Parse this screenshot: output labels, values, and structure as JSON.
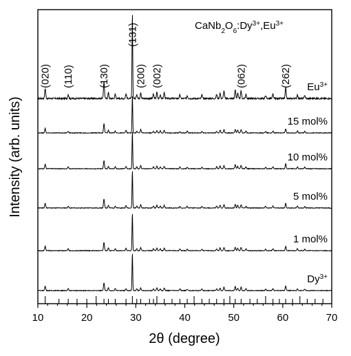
{
  "chart_data": {
    "type": "line",
    "title_parts": {
      "base": "CaNb",
      "sub1": "2",
      "mid": "O",
      "sub2": "6",
      "rest": ":Dy",
      "sup1": "3+",
      "sep": ",Eu",
      "sup2": "3+"
    },
    "xlabel_parts": {
      "symbol": "2θ",
      "unit": " (degree)"
    },
    "ylabel": "Intensity (arb. units)",
    "xlim": [
      10,
      70
    ],
    "x_ticks": [
      "10",
      "20",
      "30",
      "40",
      "50",
      "60",
      "70"
    ],
    "grid": false,
    "series": [
      {
        "label_base": "Eu",
        "label_sup": "3+"
      },
      {
        "label_base": "15 mol%"
      },
      {
        "label_base": "10 mol%"
      },
      {
        "label_base": "5 mol%"
      },
      {
        "label_base": "1 mol%"
      },
      {
        "label_base": "Dy",
        "label_sup": "3+"
      }
    ],
    "peaks": [
      {
        "x": 11.5,
        "rel": 0.12
      },
      {
        "x": 16.2,
        "rel": 0.05
      },
      {
        "x": 23.5,
        "rel": 0.22
      },
      {
        "x": 24.4,
        "rel": 0.07
      },
      {
        "x": 25.8,
        "rel": 0.05
      },
      {
        "x": 28.0,
        "rel": 0.06
      },
      {
        "x": 29.3,
        "rel": 1.0
      },
      {
        "x": 30.2,
        "rel": 0.05
      },
      {
        "x": 31.0,
        "rel": 0.08
      },
      {
        "x": 33.6,
        "rel": 0.05
      },
      {
        "x": 34.3,
        "rel": 0.07
      },
      {
        "x": 35.0,
        "rel": 0.05
      },
      {
        "x": 35.8,
        "rel": 0.07
      },
      {
        "x": 39.0,
        "rel": 0.04
      },
      {
        "x": 40.5,
        "rel": 0.04
      },
      {
        "x": 43.5,
        "rel": 0.04
      },
      {
        "x": 46.5,
        "rel": 0.05
      },
      {
        "x": 47.2,
        "rel": 0.07
      },
      {
        "x": 48.0,
        "rel": 0.09
      },
      {
        "x": 50.3,
        "rel": 0.1
      },
      {
        "x": 50.8,
        "rel": 0.07
      },
      {
        "x": 51.5,
        "rel": 0.09
      },
      {
        "x": 52.5,
        "rel": 0.05
      },
      {
        "x": 56.5,
        "rel": 0.04
      },
      {
        "x": 58.0,
        "rel": 0.05
      },
      {
        "x": 60.6,
        "rel": 0.12
      },
      {
        "x": 63.0,
        "rel": 0.05
      },
      {
        "x": 64.5,
        "rel": 0.04
      }
    ],
    "reflections": [
      {
        "hkl": "(020)",
        "x": 11.5
      },
      {
        "hkl": "(110)",
        "x": 16.2
      },
      {
        "hkl": "(130)",
        "x": 23.5
      },
      {
        "hkl": "(131)",
        "x": 29.3
      },
      {
        "hkl": "(200)",
        "x": 31.0
      },
      {
        "hkl": "(002)",
        "x": 34.3
      },
      {
        "hkl": "(062)",
        "x": 51.5
      },
      {
        "hkl": "(262)",
        "x": 60.6
      }
    ],
    "reference_lines": [
      11.5,
      14.3,
      16.2,
      18.0,
      20.0,
      21.9,
      23.5,
      24.4,
      25.8,
      28.0,
      29.3,
      30.2,
      31.0,
      32.8,
      33.6,
      34.3,
      35.8,
      37.4,
      39.0,
      40.5,
      41.9,
      43.5,
      45.0,
      46.5,
      48.0,
      49.2,
      50.3,
      51.5,
      53.3,
      54.8,
      56.5,
      58.0,
      59.3,
      60.6,
      62.0,
      63.5,
      65.0,
      66.6,
      68.2
    ]
  }
}
